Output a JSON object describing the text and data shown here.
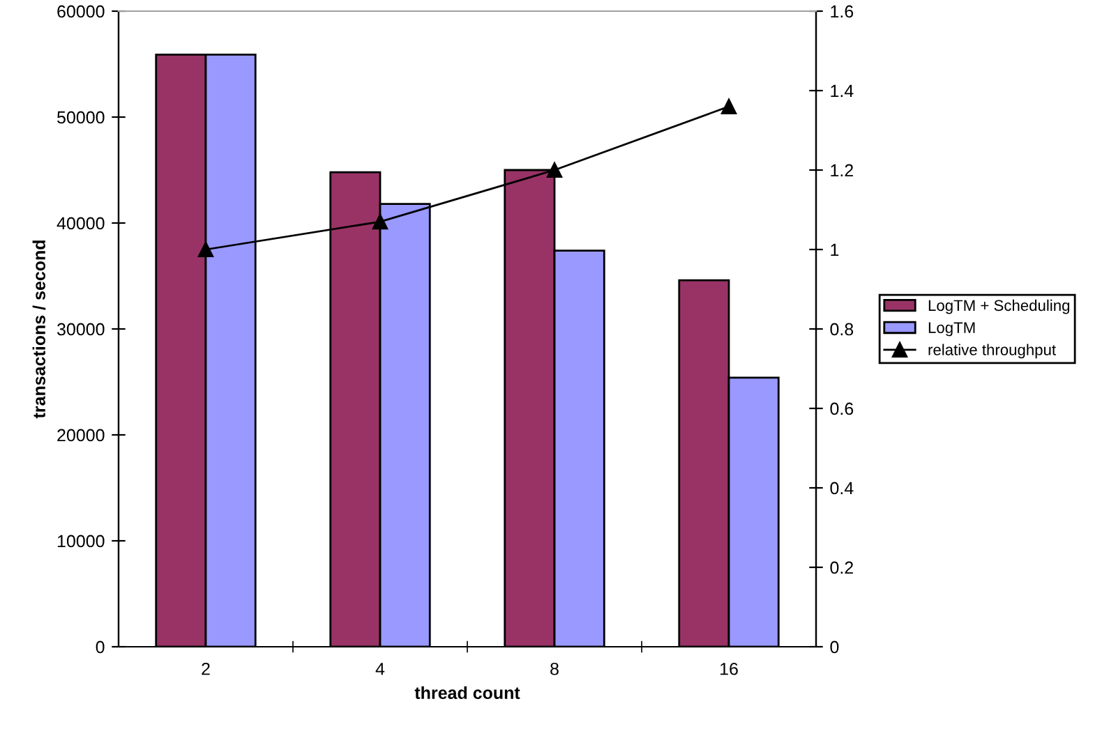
{
  "chart_data": {
    "type": "bar",
    "xlabel": "thread count",
    "ylabel": "transactions / second",
    "categories": [
      "2",
      "4",
      "8",
      "16"
    ],
    "series": [
      {
        "name": "LogTM + Scheduling",
        "color": "#993366",
        "values": [
          55900,
          44800,
          45000,
          34600
        ]
      },
      {
        "name": "LogTM",
        "color": "#9999ff",
        "values": [
          55900,
          41800,
          37400,
          25400
        ]
      },
      {
        "name": "relative throughput",
        "type": "line",
        "axis": "y2",
        "color": "#000000",
        "marker": "triangle",
        "values": [
          1.0,
          1.07,
          1.2,
          1.36
        ]
      }
    ],
    "ylim": [
      0,
      60000
    ],
    "yticks": [
      0,
      10000,
      20000,
      30000,
      40000,
      50000,
      60000
    ],
    "y2lim": [
      0,
      1.6
    ],
    "y2ticks": [
      0,
      0.2,
      0.4,
      0.6,
      0.8,
      1,
      1.2,
      1.4,
      1.6
    ],
    "grid": false,
    "legend": "right"
  }
}
